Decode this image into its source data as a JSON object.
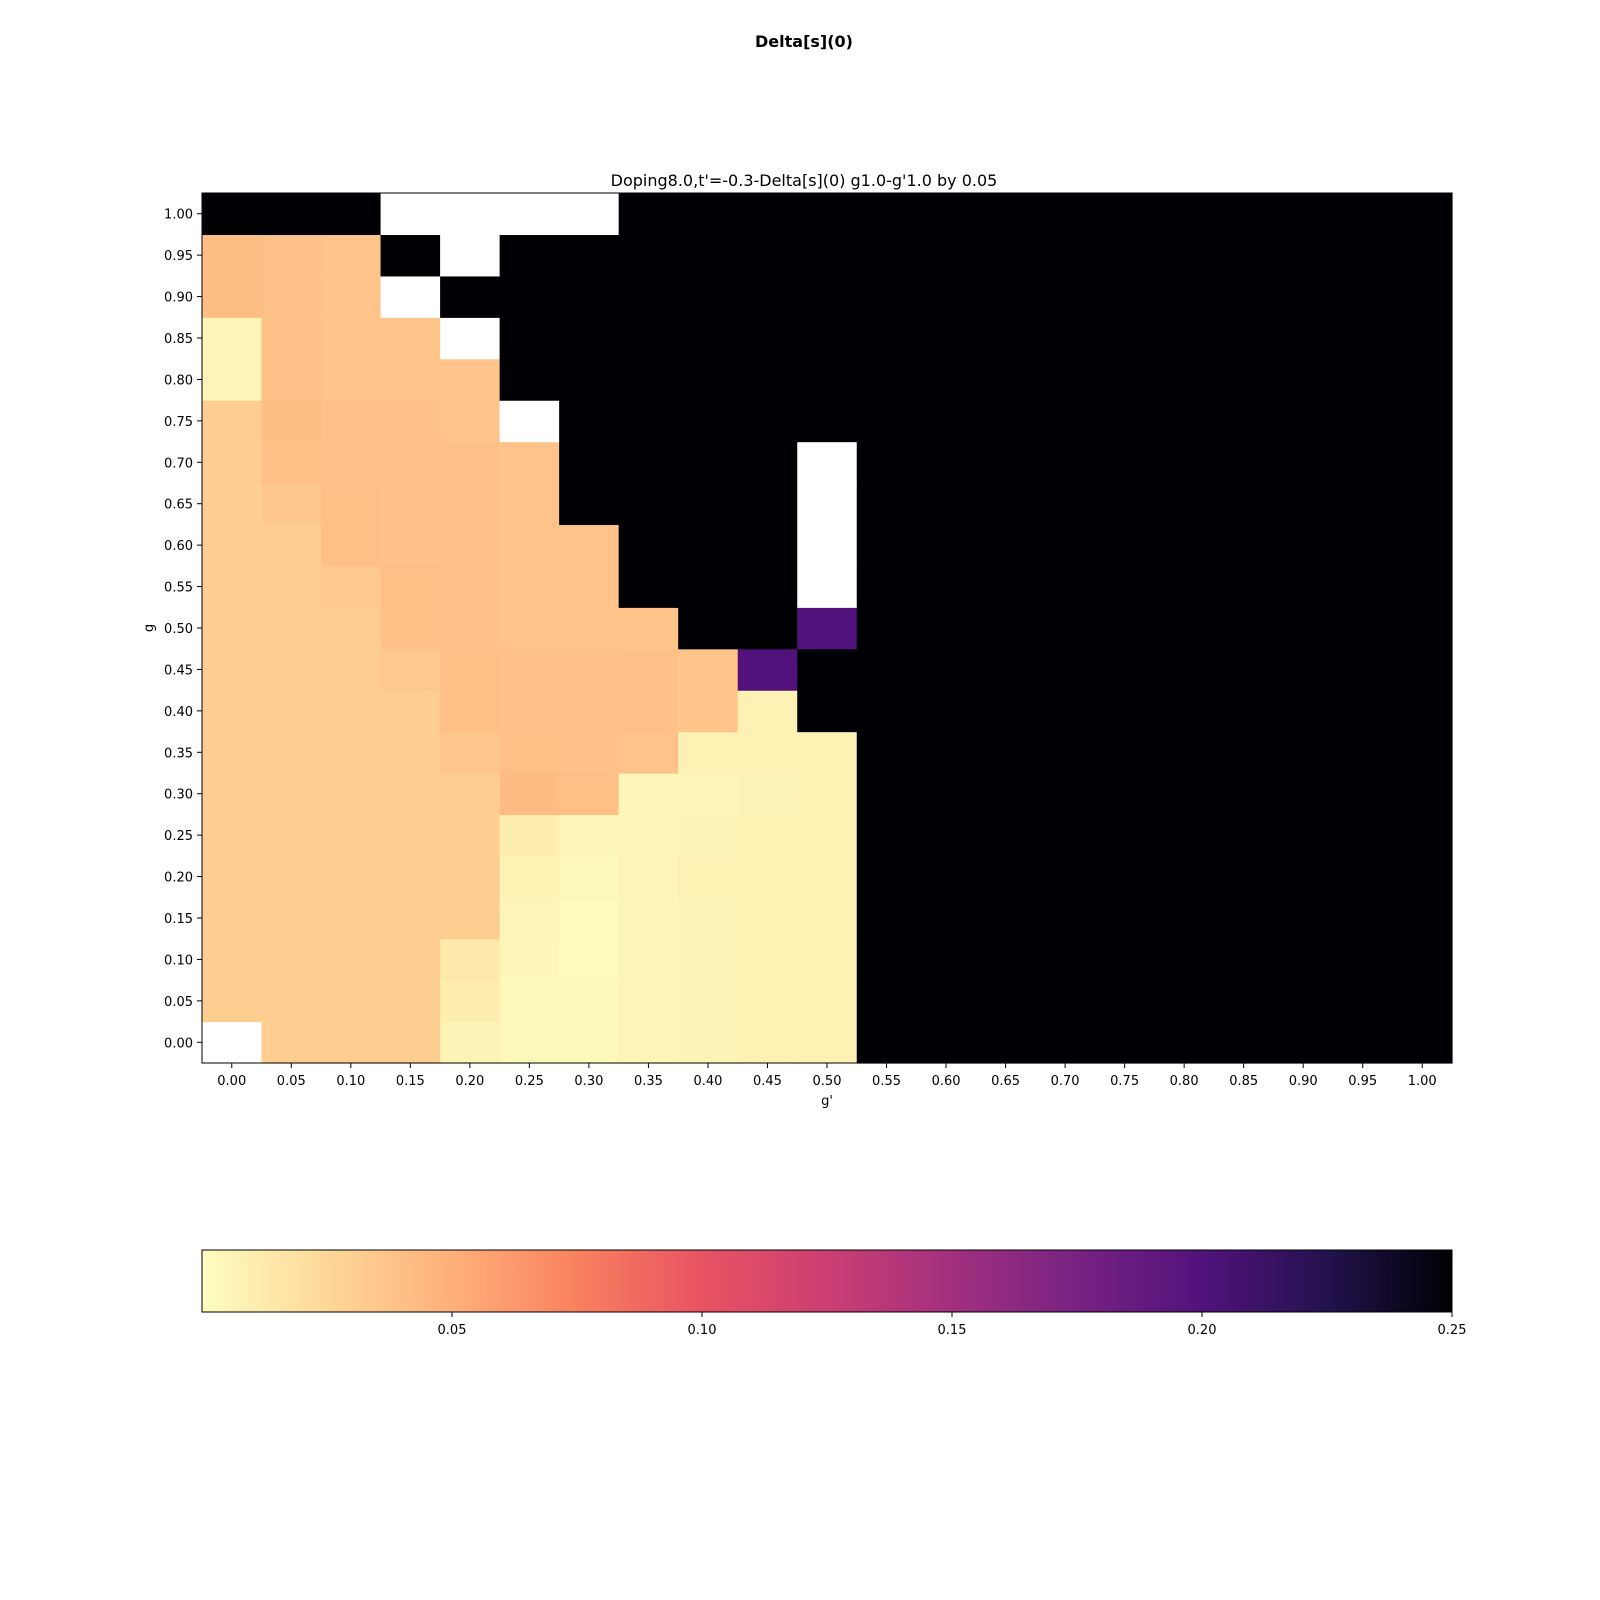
{
  "figure": {
    "suptitle": "Delta[s](0)"
  },
  "chart_data": {
    "type": "heatmap",
    "title": "Doping8.0,t'=-0.3-Delta[s](0)  g1.0-g'1.0 by 0.05",
    "xlabel": "g'",
    "ylabel": "g",
    "x": [
      "0.00",
      "0.05",
      "0.10",
      "0.15",
      "0.20",
      "0.25",
      "0.30",
      "0.35",
      "0.40",
      "0.45",
      "0.50",
      "0.55",
      "0.60",
      "0.65",
      "0.70",
      "0.75",
      "0.80",
      "0.85",
      "0.90",
      "0.95",
      "1.00"
    ],
    "y": [
      "0.00",
      "0.05",
      "0.10",
      "0.15",
      "0.20",
      "0.25",
      "0.30",
      "0.35",
      "0.40",
      "0.45",
      "0.50",
      "0.55",
      "0.60",
      "0.65",
      "0.70",
      "0.75",
      "0.80",
      "0.85",
      "0.90",
      "0.95",
      "1.00"
    ],
    "colormap": "magma_r",
    "color_range": [
      0.0,
      0.25
    ],
    "missing_color": "#ffffff",
    "colorbar": {
      "orientation": "horizontal",
      "ticks": [
        0.05,
        0.1,
        0.15,
        0.2,
        0.25
      ],
      "tick_labels": [
        "0.05",
        "0.10",
        "0.15",
        "0.20",
        "0.25"
      ]
    },
    "values": [
      [
        null,
        0.031,
        0.031,
        0.031,
        0.006,
        0.003,
        0.003,
        0.005,
        0.006,
        0.007,
        0.007,
        0.25,
        0.25,
        0.25,
        0.25,
        0.25,
        0.25,
        0.25,
        0.25,
        0.25,
        0.25
      ],
      [
        0.031,
        0.031,
        0.031,
        0.031,
        0.01,
        0.003,
        0.003,
        0.005,
        0.006,
        0.007,
        0.007,
        0.25,
        0.25,
        0.25,
        0.25,
        0.25,
        0.25,
        0.25,
        0.25,
        0.25,
        0.25
      ],
      [
        0.031,
        0.031,
        0.031,
        0.031,
        0.013,
        0.004,
        0.002,
        0.005,
        0.006,
        0.007,
        0.007,
        0.25,
        0.25,
        0.25,
        0.25,
        0.25,
        0.25,
        0.25,
        0.25,
        0.25,
        0.25
      ],
      [
        0.031,
        0.031,
        0.031,
        0.031,
        0.031,
        0.005,
        0.002,
        0.005,
        0.006,
        0.007,
        0.007,
        0.25,
        0.25,
        0.25,
        0.25,
        0.25,
        0.25,
        0.25,
        0.25,
        0.25,
        0.25
      ],
      [
        0.031,
        0.031,
        0.031,
        0.031,
        0.032,
        0.008,
        0.003,
        0.005,
        0.007,
        0.007,
        0.007,
        0.25,
        0.25,
        0.25,
        0.25,
        0.25,
        0.25,
        0.25,
        0.25,
        0.25,
        0.25
      ],
      [
        0.031,
        0.031,
        0.031,
        0.031,
        0.031,
        0.01,
        0.004,
        0.005,
        0.006,
        0.007,
        0.007,
        0.25,
        0.25,
        0.25,
        0.25,
        0.25,
        0.25,
        0.25,
        0.25,
        0.25,
        0.25
      ],
      [
        0.031,
        0.031,
        0.031,
        0.031,
        0.031,
        0.042,
        0.04,
        0.004,
        0.005,
        0.006,
        0.007,
        0.25,
        0.25,
        0.25,
        0.25,
        0.25,
        0.25,
        0.25,
        0.25,
        0.25,
        0.25
      ],
      [
        0.031,
        0.031,
        0.031,
        0.031,
        0.036,
        0.04,
        0.039,
        0.038,
        0.007,
        0.007,
        0.007,
        0.25,
        0.25,
        0.25,
        0.25,
        0.25,
        0.25,
        0.25,
        0.25,
        0.25,
        0.25
      ],
      [
        0.031,
        0.031,
        0.031,
        0.031,
        0.04,
        0.039,
        0.039,
        0.039,
        0.037,
        0.007,
        0.25,
        0.25,
        0.25,
        0.25,
        0.25,
        0.25,
        0.25,
        0.25,
        0.25,
        0.25,
        0.25
      ],
      [
        0.031,
        0.031,
        0.031,
        0.034,
        0.04,
        0.039,
        0.039,
        0.039,
        0.037,
        0.2,
        0.25,
        0.25,
        0.25,
        0.25,
        0.25,
        0.25,
        0.25,
        0.25,
        0.25,
        0.25,
        0.25
      ],
      [
        0.031,
        0.031,
        0.031,
        0.04,
        0.039,
        0.038,
        0.038,
        0.037,
        0.25,
        0.25,
        0.2,
        0.25,
        0.25,
        0.25,
        0.25,
        0.25,
        0.25,
        0.25,
        0.25,
        0.25,
        0.25
      ],
      [
        0.031,
        0.031,
        0.034,
        0.04,
        0.039,
        0.038,
        0.038,
        0.25,
        0.25,
        0.25,
        null,
        0.25,
        0.25,
        0.25,
        0.25,
        0.25,
        0.25,
        0.25,
        0.25,
        0.25,
        0.25
      ],
      [
        0.031,
        0.031,
        0.04,
        0.039,
        0.039,
        0.038,
        0.038,
        0.25,
        0.25,
        0.25,
        null,
        0.25,
        0.25,
        0.25,
        0.25,
        0.25,
        0.25,
        0.25,
        0.25,
        0.25,
        0.25
      ],
      [
        0.031,
        0.035,
        0.04,
        0.039,
        0.039,
        0.038,
        0.25,
        0.25,
        0.25,
        0.25,
        null,
        0.25,
        0.25,
        0.25,
        0.25,
        0.25,
        0.25,
        0.25,
        0.25,
        0.25,
        0.25
      ],
      [
        0.031,
        0.04,
        0.039,
        0.039,
        0.039,
        0.038,
        0.25,
        0.25,
        0.25,
        0.25,
        null,
        0.25,
        0.25,
        0.25,
        0.25,
        0.25,
        0.25,
        0.25,
        0.25,
        0.25,
        0.25
      ],
      [
        0.032,
        0.041,
        0.039,
        0.039,
        0.038,
        null,
        0.25,
        0.25,
        0.25,
        0.25,
        0.25,
        0.25,
        0.25,
        0.25,
        0.25,
        0.25,
        0.25,
        0.25,
        0.25,
        0.25,
        0.25
      ],
      [
        0.005,
        0.039,
        0.038,
        0.038,
        0.037,
        0.25,
        0.25,
        0.25,
        0.25,
        0.25,
        0.25,
        0.25,
        0.25,
        0.25,
        0.25,
        0.25,
        0.25,
        0.25,
        0.25,
        0.25,
        0.25
      ],
      [
        0.005,
        0.039,
        0.038,
        0.037,
        null,
        0.25,
        0.25,
        0.25,
        0.25,
        0.25,
        0.25,
        0.25,
        0.25,
        0.25,
        0.25,
        0.25,
        0.25,
        0.25,
        0.25,
        0.25,
        0.25
      ],
      [
        0.041,
        0.039,
        0.038,
        null,
        0.25,
        0.25,
        0.25,
        0.25,
        0.25,
        0.25,
        0.25,
        0.25,
        0.25,
        0.25,
        0.25,
        0.25,
        0.25,
        0.25,
        0.25,
        0.25,
        0.25
      ],
      [
        0.041,
        0.039,
        0.038,
        0.25,
        null,
        0.25,
        0.25,
        0.25,
        0.25,
        0.25,
        0.25,
        0.25,
        0.25,
        0.25,
        0.25,
        0.25,
        0.25,
        0.25,
        0.25,
        0.25,
        0.25
      ],
      [
        0.25,
        0.25,
        0.25,
        null,
        null,
        null,
        null,
        0.25,
        0.25,
        0.25,
        0.25,
        0.25,
        0.25,
        0.25,
        0.25,
        0.25,
        0.25,
        0.25,
        0.25,
        0.25,
        0.25
      ]
    ]
  }
}
